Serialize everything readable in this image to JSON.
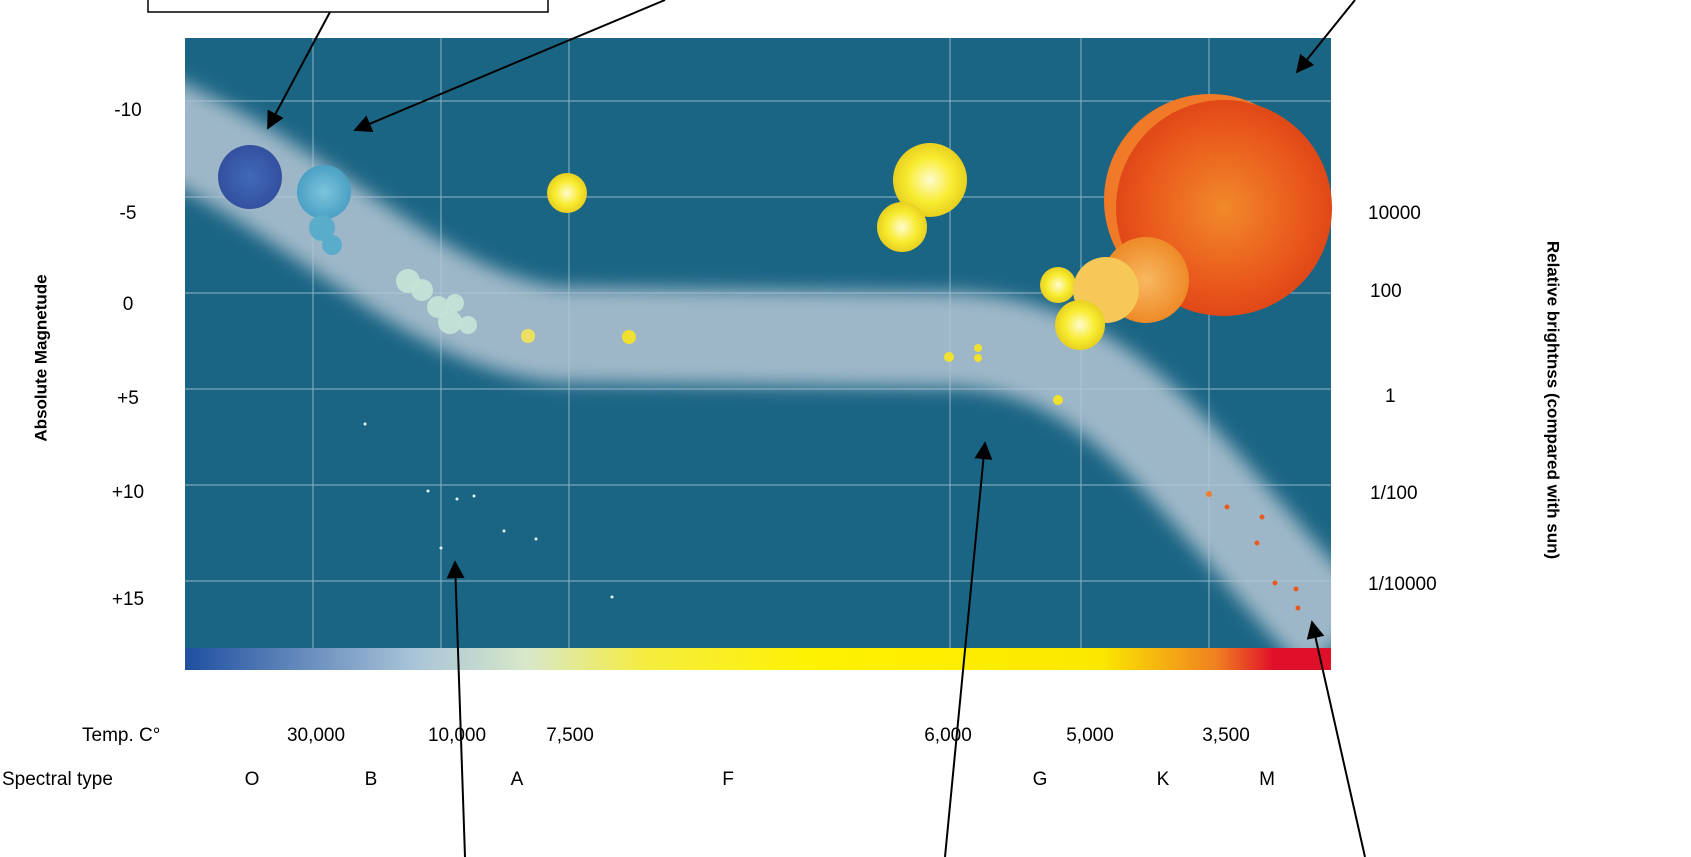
{
  "left_axis": {
    "title": "Absolute   Magnetude",
    "labels": [
      "-10",
      "-5",
      "0",
      "+5",
      "+10",
      "+15"
    ]
  },
  "right_axis": {
    "title": "Relative brightnss (compared with sun)",
    "labels": [
      "10000",
      "100",
      "1",
      "1/100",
      "1/10000"
    ]
  },
  "temperature": {
    "label": "Temp.  C°",
    "values": [
      "30,000",
      "10,000",
      "7,500",
      "6,000",
      "5,000",
      "3,500"
    ]
  },
  "spectral": {
    "label": "Spectral type",
    "types": [
      "O",
      "B",
      "A",
      "F",
      "G",
      "K",
      "M"
    ]
  }
}
